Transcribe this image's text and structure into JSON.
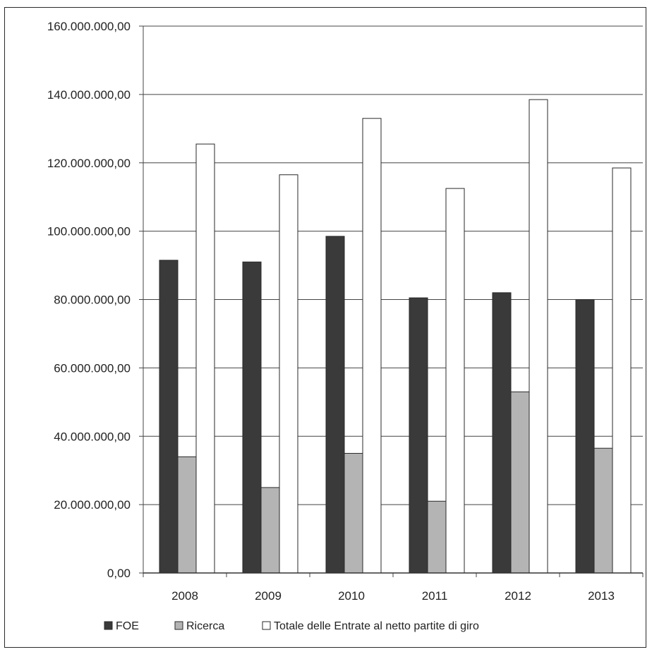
{
  "chart_data": {
    "type": "bar",
    "title": "",
    "xlabel": "",
    "ylabel": "",
    "categories": [
      "2008",
      "2009",
      "2010",
      "2011",
      "2012",
      "2013"
    ],
    "series": [
      {
        "name": "FOE",
        "values": [
          91500000,
          91000000,
          98500000,
          80500000,
          82000000,
          80000000
        ],
        "color": "#3a3a3a"
      },
      {
        "name": "Ricerca",
        "values": [
          34000000,
          25000000,
          35000000,
          21000000,
          53000000,
          36500000
        ],
        "color": "#b4b4b4"
      },
      {
        "name": "Totale delle Entrate al netto partite di giro",
        "values": [
          125500000,
          116500000,
          133000000,
          112500000,
          138500000,
          118500000
        ],
        "color": "#ffffff"
      }
    ],
    "ylim": [
      0,
      160000000
    ],
    "yticks": [
      0,
      20000000,
      40000000,
      60000000,
      80000000,
      100000000,
      120000000,
      140000000,
      160000000
    ],
    "ytick_labels": [
      "0,00",
      "20.000.000,00",
      "40.000.000,00",
      "60.000.000,00",
      "80.000.000,00",
      "100.000.000,00",
      "120.000.000,00",
      "140.000.000,00",
      "160.000.000,00"
    ],
    "grid": true,
    "legend_position": "bottom"
  }
}
